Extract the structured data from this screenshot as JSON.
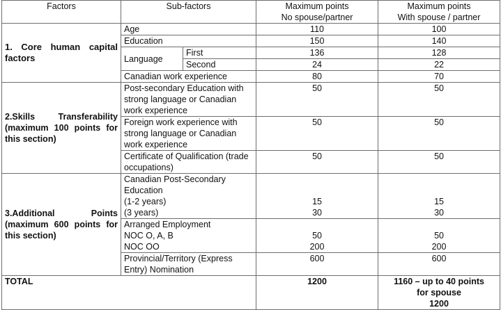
{
  "header": {
    "factors": "Factors",
    "sub_factors": "Sub-factors",
    "no_spouse": [
      "Maximum points",
      "No spouse/partner"
    ],
    "with_spouse": [
      "Maximum points",
      "With spouse / partner"
    ]
  },
  "core": {
    "label": "1. Core human capital factors",
    "age": {
      "label": "Age",
      "no": "110",
      "with": "100"
    },
    "education": {
      "label": "Education",
      "no": "150",
      "with": "140"
    },
    "language": {
      "label": "Language",
      "first": {
        "label": "First",
        "no": "136",
        "with": "128"
      },
      "second": {
        "label": "Second",
        "no": "24",
        "with": "22"
      }
    },
    "cwe": {
      "label": "Canadian work experience",
      "no": "80",
      "with": "70"
    }
  },
  "skills": {
    "label": "2.Skills Transferability (maximum 100 points for this section)",
    "rows": [
      {
        "label": "Post-secondary Education with strong language or Canadian work experience",
        "no": "50",
        "with": "50"
      },
      {
        "label": "Foreign work experience with strong language or Canadian work experience",
        "no": "50",
        "with": "50"
      },
      {
        "label": "Certificate of Qualification (trade occupations)",
        "no": "50",
        "with": "50"
      }
    ]
  },
  "additional": {
    "label": "3.Additional Points (maximum 600 points for this section)",
    "rows": [
      {
        "lines": [
          "Canadian Post-Secondary",
          "Education",
          "(1-2 years)",
          "(3 years)"
        ],
        "no": [
          "",
          "",
          "15",
          "30"
        ],
        "with": [
          "",
          "",
          "15",
          "30"
        ]
      },
      {
        "lines": [
          "Arranged Employment",
          "NOC O, A, B",
          "NOC OO"
        ],
        "no": [
          "",
          "50",
          "200"
        ],
        "with": [
          "",
          "50",
          "200"
        ]
      },
      {
        "lines": [
          "Provincial/Territory (Express",
          "Entry) Nomination"
        ],
        "no": [
          "600"
        ],
        "with": [
          "600"
        ]
      }
    ]
  },
  "total": {
    "label": "TOTAL",
    "no": "1200",
    "with": [
      "1160 – up to 40 points",
      "for spouse",
      "1200"
    ]
  }
}
